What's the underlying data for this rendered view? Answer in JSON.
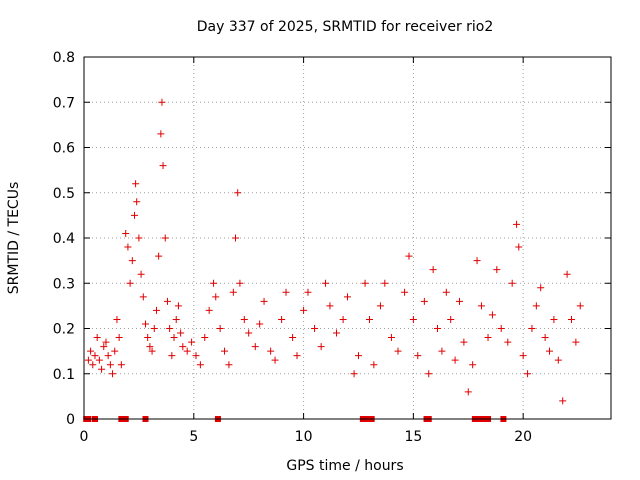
{
  "chart_data": {
    "type": "scatter",
    "title": "Day 337 of 2025, SRMTID for receiver rio2",
    "xlabel": "GPS time / hours",
    "ylabel": "SRMTID / TECUs",
    "xlim": [
      0,
      24
    ],
    "ylim": [
      0,
      0.8
    ],
    "xticks": [
      0,
      5,
      10,
      15,
      20
    ],
    "yticks": [
      0,
      0.1,
      0.2,
      0.3,
      0.4,
      0.5,
      0.6,
      0.7,
      0.8
    ],
    "xtick_labels": [
      "0",
      "5",
      "10",
      "15",
      "20"
    ],
    "ytick_labels": [
      "0",
      "0.1",
      "0.2",
      "0.3",
      "0.4",
      "0.5",
      "0.6",
      "0.7",
      "0.8"
    ],
    "grid": true,
    "marker": "+",
    "color": "#e00000",
    "series": [
      {
        "name": "SRMTID",
        "points": [
          [
            0.2,
            0.13
          ],
          [
            0.3,
            0.15
          ],
          [
            0.4,
            0.12
          ],
          [
            0.5,
            0.14
          ],
          [
            0.6,
            0.18
          ],
          [
            0.7,
            0.13
          ],
          [
            0.8,
            0.11
          ],
          [
            0.9,
            0.16
          ],
          [
            1.0,
            0.17
          ],
          [
            1.1,
            0.14
          ],
          [
            1.2,
            0.12
          ],
          [
            1.3,
            0.1
          ],
          [
            1.4,
            0.15
          ],
          [
            1.5,
            0.22
          ],
          [
            1.6,
            0.18
          ],
          [
            1.7,
            0.12
          ],
          [
            1.9,
            0.41
          ],
          [
            2.0,
            0.38
          ],
          [
            2.1,
            0.3
          ],
          [
            2.2,
            0.35
          ],
          [
            2.3,
            0.45
          ],
          [
            2.35,
            0.52
          ],
          [
            2.4,
            0.48
          ],
          [
            2.5,
            0.4
          ],
          [
            2.6,
            0.32
          ],
          [
            2.7,
            0.27
          ],
          [
            2.8,
            0.21
          ],
          [
            2.9,
            0.18
          ],
          [
            3.0,
            0.16
          ],
          [
            3.1,
            0.15
          ],
          [
            3.2,
            0.2
          ],
          [
            3.3,
            0.24
          ],
          [
            3.4,
            0.36
          ],
          [
            3.5,
            0.63
          ],
          [
            3.55,
            0.7
          ],
          [
            3.6,
            0.56
          ],
          [
            3.7,
            0.4
          ],
          [
            3.8,
            0.26
          ],
          [
            3.9,
            0.2
          ],
          [
            4.0,
            0.14
          ],
          [
            4.1,
            0.18
          ],
          [
            4.2,
            0.22
          ],
          [
            4.3,
            0.25
          ],
          [
            4.4,
            0.19
          ],
          [
            4.5,
            0.16
          ],
          [
            4.7,
            0.15
          ],
          [
            4.9,
            0.17
          ],
          [
            5.1,
            0.14
          ],
          [
            5.3,
            0.12
          ],
          [
            5.5,
            0.18
          ],
          [
            5.7,
            0.24
          ],
          [
            5.9,
            0.3
          ],
          [
            6.0,
            0.27
          ],
          [
            6.2,
            0.2
          ],
          [
            6.4,
            0.15
          ],
          [
            6.6,
            0.12
          ],
          [
            6.8,
            0.28
          ],
          [
            6.9,
            0.4
          ],
          [
            7.0,
            0.5
          ],
          [
            7.1,
            0.3
          ],
          [
            7.3,
            0.22
          ],
          [
            7.5,
            0.19
          ],
          [
            7.8,
            0.16
          ],
          [
            8.0,
            0.21
          ],
          [
            8.2,
            0.26
          ],
          [
            8.5,
            0.15
          ],
          [
            8.7,
            0.13
          ],
          [
            9.0,
            0.22
          ],
          [
            9.2,
            0.28
          ],
          [
            9.5,
            0.18
          ],
          [
            9.7,
            0.14
          ],
          [
            10.0,
            0.24
          ],
          [
            10.2,
            0.28
          ],
          [
            10.5,
            0.2
          ],
          [
            10.8,
            0.16
          ],
          [
            11.0,
            0.3
          ],
          [
            11.2,
            0.25
          ],
          [
            11.5,
            0.19
          ],
          [
            11.8,
            0.22
          ],
          [
            12.0,
            0.27
          ],
          [
            12.3,
            0.1
          ],
          [
            12.5,
            0.14
          ],
          [
            12.8,
            0.3
          ],
          [
            13.0,
            0.22
          ],
          [
            13.2,
            0.12
          ],
          [
            13.5,
            0.25
          ],
          [
            13.7,
            0.3
          ],
          [
            14.0,
            0.18
          ],
          [
            14.3,
            0.15
          ],
          [
            14.6,
            0.28
          ],
          [
            14.8,
            0.36
          ],
          [
            15.0,
            0.22
          ],
          [
            15.2,
            0.14
          ],
          [
            15.5,
            0.26
          ],
          [
            15.7,
            0.1
          ],
          [
            15.9,
            0.33
          ],
          [
            16.1,
            0.2
          ],
          [
            16.3,
            0.15
          ],
          [
            16.5,
            0.28
          ],
          [
            16.7,
            0.22
          ],
          [
            16.9,
            0.13
          ],
          [
            17.1,
            0.26
          ],
          [
            17.3,
            0.17
          ],
          [
            17.5,
            0.06
          ],
          [
            17.7,
            0.12
          ],
          [
            17.9,
            0.35
          ],
          [
            18.1,
            0.25
          ],
          [
            18.4,
            0.18
          ],
          [
            18.6,
            0.23
          ],
          [
            18.8,
            0.33
          ],
          [
            19.0,
            0.2
          ],
          [
            19.3,
            0.17
          ],
          [
            19.5,
            0.3
          ],
          [
            19.7,
            0.43
          ],
          [
            19.8,
            0.38
          ],
          [
            20.0,
            0.14
          ],
          [
            20.2,
            0.1
          ],
          [
            20.4,
            0.2
          ],
          [
            20.6,
            0.25
          ],
          [
            20.8,
            0.29
          ],
          [
            21.0,
            0.18
          ],
          [
            21.2,
            0.15
          ],
          [
            21.4,
            0.22
          ],
          [
            21.6,
            0.13
          ],
          [
            21.8,
            0.04
          ],
          [
            22.0,
            0.32
          ],
          [
            22.2,
            0.22
          ],
          [
            22.4,
            0.17
          ],
          [
            22.6,
            0.25
          ]
        ]
      }
    ],
    "zero_markers_x": [
      0.1,
      0.2,
      0.5,
      1.7,
      1.8,
      1.9,
      2.8,
      6.1,
      12.7,
      12.8,
      12.9,
      13.0,
      13.1,
      15.6,
      15.7,
      17.8,
      17.9,
      18.0,
      18.1,
      18.2,
      18.3,
      18.4,
      19.1
    ]
  }
}
